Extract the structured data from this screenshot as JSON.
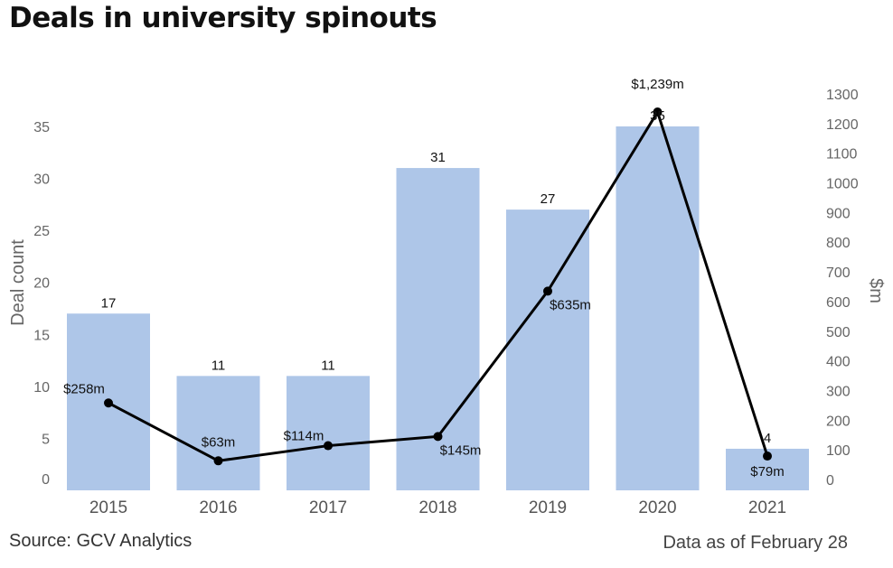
{
  "title": "Deals in university spinouts",
  "footer": {
    "source": "Source: GCV Analytics",
    "as_of": "Data as of February 28"
  },
  "colors": {
    "bar": "#aec6e8",
    "line": "#000000"
  },
  "chart_data": {
    "type": "bar",
    "title": "Deals in university spinouts",
    "categories": [
      "2015",
      "2016",
      "2017",
      "2018",
      "2019",
      "2020",
      "2021"
    ],
    "series": [
      {
        "name": "Deal count",
        "type": "bar",
        "axis": "left",
        "values": [
          17,
          11,
          11,
          31,
          27,
          35,
          4
        ],
        "labels": [
          "17",
          "11",
          "11",
          "31",
          "27",
          "35",
          "4"
        ]
      },
      {
        "name": "$m",
        "type": "line",
        "axis": "right",
        "values": [
          258,
          63,
          114,
          145,
          635,
          1239,
          79
        ],
        "labels": [
          "$258m",
          "$63m",
          "$114m",
          "$145m",
          "$635m",
          "$1,239m",
          "$79m"
        ]
      }
    ],
    "ylabel": "Deal count",
    "ylim": [
      0,
      37
    ],
    "yticks": [
      0,
      5,
      10,
      15,
      20,
      25,
      30,
      35
    ],
    "y2label": "$m",
    "y2lim": [
      0,
      1300
    ],
    "y2ticks": [
      0,
      100,
      200,
      300,
      400,
      500,
      600,
      700,
      800,
      900,
      1000,
      1100,
      1200,
      1300
    ],
    "xlabel": "",
    "grid": false,
    "legend": "none"
  }
}
